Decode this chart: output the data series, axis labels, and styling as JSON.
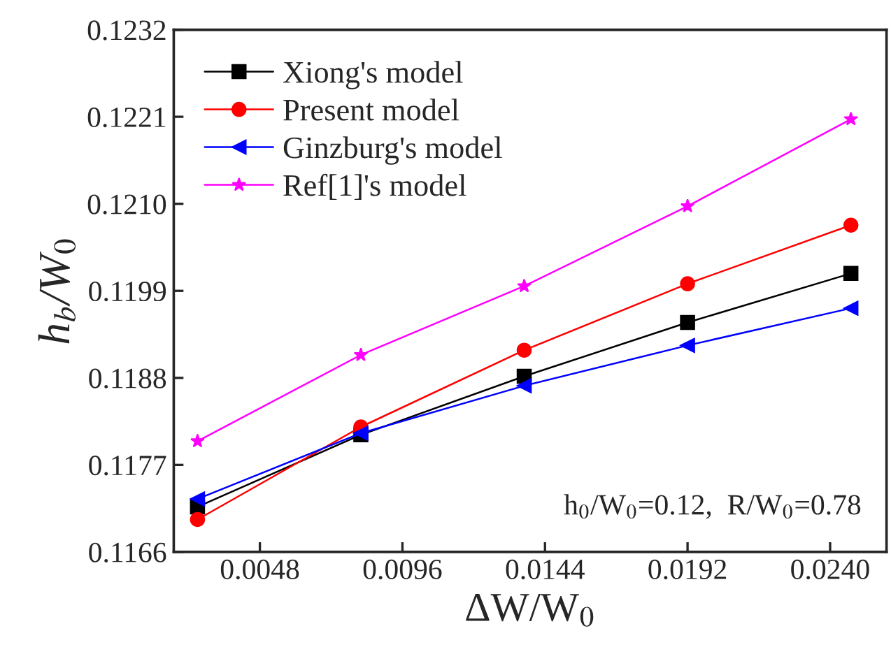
{
  "chart_data": {
    "type": "line",
    "xlabel": "ΔW/W$_{0}$",
    "ylabel": "h$_{b}$/W$_{0}$",
    "x": [
      0.0027,
      0.0082,
      0.0137,
      0.0192,
      0.0247
    ],
    "series": [
      {
        "name": "Xiong's model",
        "color": "#000000",
        "marker": "square",
        "values": [
          0.11717,
          0.11808,
          0.11882,
          0.1195,
          0.12012
        ]
      },
      {
        "name": "Present model",
        "color": "#ff0000",
        "marker": "circle",
        "values": [
          0.11701,
          0.11818,
          0.11915,
          0.11999,
          0.12073
        ]
      },
      {
        "name": "Ginzburg's model",
        "color": "#0000ff",
        "marker": "triangle",
        "values": [
          0.11727,
          0.1181,
          0.1187,
          0.11921,
          0.11968
        ]
      },
      {
        "name": "Ref[1]'s model",
        "color": "#ff00ff",
        "marker": "star",
        "values": [
          0.118,
          0.11909,
          0.11996,
          0.12097,
          0.12207
        ]
      }
    ],
    "xlim": [
      0.0019,
      0.0259
    ],
    "xticks": [
      {
        "value": 0.0048,
        "label": "0.0048"
      },
      {
        "value": 0.0096,
        "label": "0.0096"
      },
      {
        "value": 0.0144,
        "label": "0.0144"
      },
      {
        "value": 0.0192,
        "label": "0.0192"
      },
      {
        "value": 0.024,
        "label": "0.0240"
      }
    ],
    "ylim": [
      0.1166,
      0.1232
    ],
    "yticks": [
      {
        "value": 0.1166,
        "label": "0.1166"
      },
      {
        "value": 0.1177,
        "label": "0.1177"
      },
      {
        "value": 0.1188,
        "label": "0.1188"
      },
      {
        "value": 0.1199,
        "label": "0.1199"
      },
      {
        "value": 0.121,
        "label": "0.1210"
      },
      {
        "value": 0.1221,
        "label": "0.1221"
      },
      {
        "value": 0.1232,
        "label": "0.1232"
      }
    ],
    "annotations": [
      "h$_{0}$/W$_{0}$=0.12,  R/W$_{0}$=0.78"
    ],
    "legend": "top left",
    "grid": false,
    "line_style": "solid"
  }
}
